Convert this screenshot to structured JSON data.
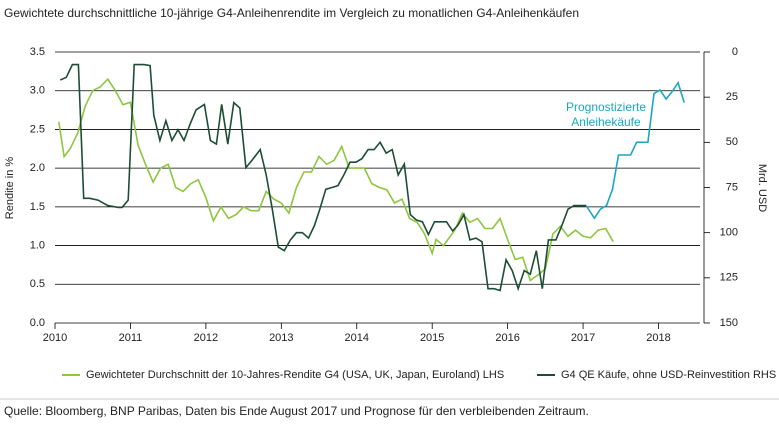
{
  "chart_data": {
    "type": "line",
    "title": "Gewichtete durchschnittliche 10-jährige G4-Anleihenrendite im Vergleich zu monatlichen G4-Anleihenkäufen",
    "y_label": "Rendite in %",
    "y2_label": "Mrd. USD",
    "source": "Quelle: Bloomberg, BNP Paribas, Daten bis Ende August 2017 und Prognose für den verbleibenden Zeitraum.",
    "annotation": [
      "Prognostizierte",
      "Anleihekäufe"
    ],
    "xlim": [
      2010,
      2018.55
    ],
    "xticks": [
      2010,
      2011,
      2012,
      2013,
      2014,
      2015,
      2016,
      2017,
      2018
    ],
    "ylim": [
      0,
      3.5
    ],
    "yticks": [
      {
        "value": 0,
        "label": "0.0"
      },
      0.5,
      {
        "value": 1,
        "label": "1.0"
      },
      1.5,
      {
        "value": 2,
        "label": "2.0"
      },
      2.5,
      {
        "value": 3,
        "label": "3.0"
      },
      3.5
    ],
    "y2lim": [
      150,
      0
    ],
    "y2ticks": [
      0,
      25,
      50,
      75,
      100,
      125,
      150
    ],
    "grid": true,
    "series": [
      {
        "name": "Gewichteter Durchschnitt der 10-Jahres-Rendite G4 (USA, UK, Japan, Euroland) LHS",
        "color": "#8dc63f",
        "x": [
          2010.05,
          2010.12,
          2010.2,
          2010.3,
          2010.4,
          2010.5,
          2010.6,
          2010.7,
          2010.8,
          2010.9,
          2011.0,
          2011.1,
          2011.2,
          2011.3,
          2011.4,
          2011.5,
          2011.6,
          2011.7,
          2011.8,
          2011.9,
          2012.0,
          2012.1,
          2012.2,
          2012.3,
          2012.4,
          2012.5,
          2012.6,
          2012.7,
          2012.8,
          2012.9,
          2013.0,
          2013.1,
          2013.2,
          2013.3,
          2013.4,
          2013.5,
          2013.6,
          2013.7,
          2013.8,
          2013.9,
          2014.0,
          2014.1,
          2014.2,
          2014.3,
          2014.4,
          2014.5,
          2014.6,
          2014.7,
          2014.8,
          2014.9,
          2015.0,
          2015.05,
          2015.15,
          2015.3,
          2015.4,
          2015.5,
          2015.6,
          2015.7,
          2015.8,
          2015.9,
          2016.0,
          2016.1,
          2016.2,
          2016.3,
          2016.4,
          2016.5,
          2016.6,
          2016.7,
          2016.8,
          2016.9,
          2017.0,
          2017.1,
          2017.2,
          2017.3,
          2017.4
        ],
        "values": [
          2.6,
          2.15,
          2.25,
          2.45,
          2.8,
          3.0,
          3.05,
          3.15,
          3.0,
          2.82,
          2.85,
          2.3,
          2.05,
          1.82,
          2.0,
          2.05,
          1.75,
          1.7,
          1.8,
          1.85,
          1.62,
          1.32,
          1.5,
          1.35,
          1.4,
          1.5,
          1.45,
          1.45,
          1.7,
          1.6,
          1.55,
          1.42,
          1.75,
          1.95,
          1.95,
          2.15,
          2.05,
          2.1,
          2.28,
          2.0,
          2.0,
          2.0,
          1.8,
          1.75,
          1.72,
          1.55,
          1.6,
          1.35,
          1.3,
          1.15,
          0.9,
          1.08,
          1.0,
          1.2,
          1.42,
          1.3,
          1.35,
          1.22,
          1.22,
          1.35,
          1.08,
          0.82,
          0.85,
          0.55,
          0.62,
          0.7,
          1.15,
          1.25,
          1.12,
          1.2,
          1.12,
          1.1,
          1.2,
          1.22,
          1.05
        ]
      },
      {
        "name": "G4 QE Käufe, ohne USD-Reinvestition RHS",
        "color": "#1d4e35",
        "axis": "y2",
        "x": [
          2010.07,
          2010.15,
          2010.23,
          2010.31,
          2010.38,
          2010.46,
          2010.57,
          2010.7,
          2010.84,
          2010.89,
          2010.97,
          2011.05,
          2011.18,
          2011.26,
          2011.31,
          2011.39,
          2011.47,
          2011.55,
          2011.63,
          2011.71,
          2011.79,
          2011.87,
          2011.98,
          2012.06,
          2012.14,
          2012.21,
          2012.29,
          2012.37,
          2012.45,
          2012.53,
          2012.61,
          2012.72,
          2012.8,
          2012.88,
          2012.96,
          2013.04,
          2013.12,
          2013.2,
          2013.28,
          2013.36,
          2013.44,
          2013.51,
          2013.59,
          2013.67,
          2013.75,
          2013.83,
          2013.91,
          2013.99,
          2014.07,
          2014.15,
          2014.23,
          2014.31,
          2014.39,
          2014.47,
          2014.55,
          2014.63,
          2014.71,
          2014.79,
          2014.87,
          2014.95,
          2015.03,
          2015.11,
          2015.19,
          2015.27,
          2015.34,
          2015.42,
          2015.5,
          2015.58,
          2015.66,
          2015.74,
          2015.82,
          2015.9,
          2015.98,
          2016.06,
          2016.14,
          2016.22,
          2016.3,
          2016.38,
          2016.46,
          2016.54,
          2016.64,
          2016.72,
          2016.8,
          2016.88,
          2016.96,
          2017.04
        ],
        "values": [
          15.5,
          14,
          7,
          7,
          81,
          81,
          82,
          85,
          86,
          86,
          82,
          7,
          7,
          7.5,
          35,
          49,
          38,
          49,
          43,
          49,
          40,
          32,
          29,
          49,
          51,
          29,
          51,
          28,
          31,
          64,
          60,
          54,
          68,
          87,
          108,
          110,
          104,
          100,
          100,
          103,
          96,
          87,
          76,
          75,
          74,
          68,
          61,
          61,
          59,
          54,
          54,
          50,
          56,
          54,
          68,
          62,
          90,
          93,
          94,
          101,
          94,
          94,
          94,
          99,
          96,
          90,
          104,
          103,
          105,
          131,
          131,
          132,
          115,
          121,
          131,
          121,
          123,
          110,
          131,
          104,
          104,
          96,
          87,
          85,
          85,
          85
        ]
      },
      {
        "color": "#1ba6c2",
        "axis": "y2",
        "x": [
          2017.04,
          2017.15,
          2017.23,
          2017.31,
          2017.39,
          2017.47,
          2017.55,
          2017.63,
          2017.71,
          2017.79,
          2017.86,
          2017.94,
          2018.02,
          2018.1,
          2018.18,
          2018.26,
          2018.34
        ],
        "values": [
          85,
          92,
          87,
          85,
          76,
          57,
          57,
          57,
          50,
          50,
          50,
          23,
          21,
          26,
          22,
          17,
          28
        ]
      }
    ]
  }
}
